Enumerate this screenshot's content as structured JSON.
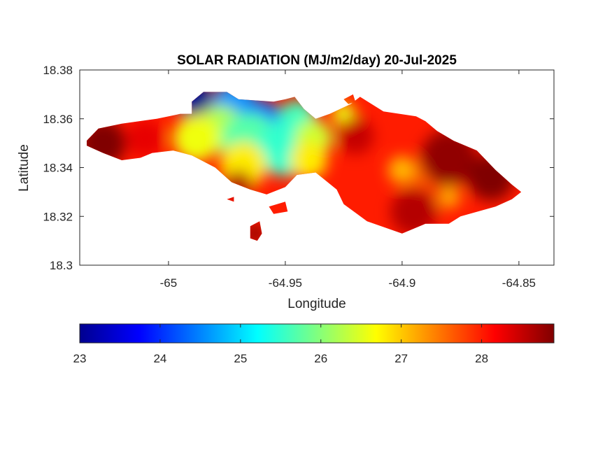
{
  "chart_data": {
    "type": "heatmap",
    "title": "SOLAR RADIATION (MJ/m2/day) 20-Jul-2025",
    "xlabel": "Longitude",
    "ylabel": "Latitude",
    "xlim": [
      -65.038,
      -64.835
    ],
    "ylim": [
      18.3,
      18.38
    ],
    "xticks": [
      -65,
      -64.95,
      -64.9,
      -64.85
    ],
    "xtick_labels": [
      "-65",
      "-64.95",
      "-64.9",
      "-64.85"
    ],
    "yticks": [
      18.3,
      18.32,
      18.34,
      18.36,
      18.38
    ],
    "ytick_labels": [
      "18.3",
      "18.32",
      "18.34",
      "18.36",
      "18.38"
    ],
    "grid": false,
    "colormap": "jet",
    "clim": [
      23,
      28.9
    ],
    "colorbar": {
      "location": "bottom",
      "ticks": [
        23,
        24,
        25,
        26,
        27,
        28
      ],
      "tick_labels": [
        "23",
        "24",
        "25",
        "26",
        "27",
        "28"
      ]
    },
    "land_outline": [
      [
        -65.035,
        18.351
      ],
      [
        -65.03,
        18.356
      ],
      [
        -65.02,
        18.358
      ],
      [
        -65.005,
        18.36
      ],
      [
        -64.995,
        18.362
      ],
      [
        -64.99,
        18.362
      ],
      [
        -64.99,
        18.367
      ],
      [
        -64.985,
        18.371
      ],
      [
        -64.975,
        18.371
      ],
      [
        -64.97,
        18.368
      ],
      [
        -64.955,
        18.367
      ],
      [
        -64.95,
        18.368
      ],
      [
        -64.946,
        18.369
      ],
      [
        -64.942,
        18.364
      ],
      [
        -64.937,
        18.36
      ],
      [
        -64.931,
        18.362
      ],
      [
        -64.922,
        18.366
      ],
      [
        -64.918,
        18.369
      ],
      [
        -64.908,
        18.363
      ],
      [
        -64.894,
        18.361
      ],
      [
        -64.89,
        18.359
      ],
      [
        -64.885,
        18.355
      ],
      [
        -64.878,
        18.351
      ],
      [
        -64.868,
        18.347
      ],
      [
        -64.86,
        18.339
      ],
      [
        -64.853,
        18.333
      ],
      [
        -64.849,
        18.33
      ],
      [
        -64.853,
        18.327
      ],
      [
        -64.86,
        18.324
      ],
      [
        -64.875,
        18.32
      ],
      [
        -64.88,
        18.317
      ],
      [
        -64.89,
        18.317
      ],
      [
        -64.895,
        18.315
      ],
      [
        -64.9,
        18.313
      ],
      [
        -64.915,
        18.318
      ],
      [
        -64.925,
        18.325
      ],
      [
        -64.928,
        18.331
      ],
      [
        -64.937,
        18.338
      ],
      [
        -64.945,
        18.337
      ],
      [
        -64.95,
        18.332
      ],
      [
        -64.958,
        18.329
      ],
      [
        -64.965,
        18.331
      ],
      [
        -64.973,
        18.334
      ],
      [
        -64.98,
        18.34
      ],
      [
        -64.99,
        18.345
      ],
      [
        -64.998,
        18.347
      ],
      [
        -65.007,
        18.346
      ],
      [
        -65.012,
        18.344
      ],
      [
        -65.02,
        18.343
      ],
      [
        -65.028,
        18.346
      ],
      [
        -65.035,
        18.349
      ]
    ],
    "islets": [
      [
        [
          -64.965,
          18.316
        ],
        [
          -64.961,
          18.318
        ],
        [
          -64.96,
          18.313
        ],
        [
          -64.962,
          18.31
        ],
        [
          -64.965,
          18.311
        ]
      ],
      [
        [
          -64.957,
          18.324
        ],
        [
          -64.95,
          18.326
        ],
        [
          -64.949,
          18.322
        ],
        [
          -64.955,
          18.321
        ]
      ],
      [
        [
          -64.975,
          18.327
        ],
        [
          -64.972,
          18.328
        ],
        [
          -64.972,
          18.326
        ]
      ],
      [
        [
          -64.925,
          18.368
        ],
        [
          -64.921,
          18.37
        ],
        [
          -64.92,
          18.367
        ],
        [
          -64.923,
          18.366
        ]
      ]
    ],
    "hotspots": [
      {
        "lon": -64.99,
        "lat": 18.369,
        "r": 0.008,
        "value": 23.0
      },
      {
        "lon": -64.972,
        "lat": 18.365,
        "r": 0.01,
        "value": 24.6
      },
      {
        "lon": -64.96,
        "lat": 18.36,
        "r": 0.008,
        "value": 24.4
      },
      {
        "lon": -64.953,
        "lat": 18.356,
        "r": 0.006,
        "value": 24.2
      },
      {
        "lon": -64.945,
        "lat": 18.36,
        "r": 0.008,
        "value": 25.6
      },
      {
        "lon": -64.978,
        "lat": 18.356,
        "r": 0.01,
        "value": 26.2
      },
      {
        "lon": -64.965,
        "lat": 18.351,
        "r": 0.012,
        "value": 25.7
      },
      {
        "lon": -64.95,
        "lat": 18.348,
        "r": 0.012,
        "value": 25.5
      },
      {
        "lon": -64.938,
        "lat": 18.352,
        "r": 0.008,
        "value": 26.4
      },
      {
        "lon": -64.925,
        "lat": 18.362,
        "r": 0.005,
        "value": 26.6
      },
      {
        "lon": -64.988,
        "lat": 18.352,
        "r": 0.01,
        "value": 26.6
      },
      {
        "lon": -64.94,
        "lat": 18.343,
        "r": 0.008,
        "value": 26.8
      },
      {
        "lon": -64.968,
        "lat": 18.341,
        "r": 0.01,
        "value": 26.8
      },
      {
        "lon": -64.9,
        "lat": 18.339,
        "r": 0.006,
        "value": 27.1
      },
      {
        "lon": -64.88,
        "lat": 18.328,
        "r": 0.005,
        "value": 27.2
      },
      {
        "lon": -64.89,
        "lat": 18.337,
        "r": 0.006,
        "value": 27.6
      },
      {
        "lon": -64.88,
        "lat": 18.344,
        "r": 0.012,
        "value": 28.8
      },
      {
        "lon": -64.862,
        "lat": 18.336,
        "r": 0.01,
        "value": 28.9
      },
      {
        "lon": -64.895,
        "lat": 18.322,
        "r": 0.01,
        "value": 28.6
      },
      {
        "lon": -64.92,
        "lat": 18.353,
        "r": 0.008,
        "value": 28.5
      },
      {
        "lon": -65.028,
        "lat": 18.35,
        "r": 0.01,
        "value": 28.9
      },
      {
        "lon": -65.01,
        "lat": 18.352,
        "r": 0.008,
        "value": 28.3
      },
      {
        "lon": -64.963,
        "lat": 18.313,
        "r": 0.004,
        "value": 28.9
      },
      {
        "lon": -64.97,
        "lat": 18.333,
        "r": 0.006,
        "value": 28.6
      }
    ],
    "background_value": 28.0
  }
}
